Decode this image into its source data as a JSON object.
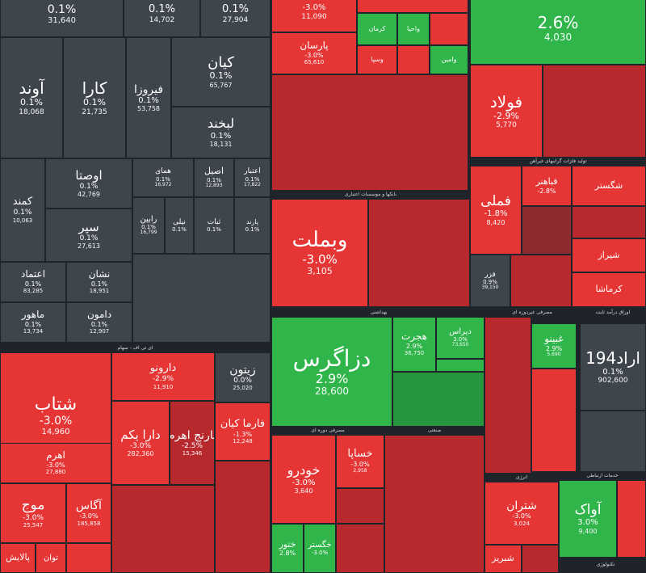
{
  "colors": {
    "neutral": "#3f454d",
    "negative": "#e63535",
    "negative_dark": "#b7292c",
    "positive": "#2fb54a",
    "background": "#1f242b"
  },
  "sections": [
    {
      "label": "ای تی اف - سهام"
    },
    {
      "label": "بهداشتی"
    },
    {
      "label": "مصرفی غیردوره ای"
    },
    {
      "label": "اوراق درآمد ثابت"
    },
    {
      "label": "مصرفی دوره ای"
    },
    {
      "label": "صنعتی"
    },
    {
      "label": "انرژی"
    },
    {
      "label": "خدمات ارتباطی"
    },
    {
      "label": "تکنولوژی"
    },
    {
      "label": "بانکها و موسسات اعتباری"
    },
    {
      "label": "تولید فلزات گرانبهای غیرآهن"
    }
  ],
  "tiles": [
    {
      "name": "",
      "pct": "0.1%",
      "val": "31,640"
    },
    {
      "name": "",
      "pct": "0.1%",
      "val": "14,702"
    },
    {
      "name": "",
      "pct": "0.1%",
      "val": "27,904"
    },
    {
      "name": "آوند",
      "pct": "0.1%",
      "val": "18,068"
    },
    {
      "name": "کارا",
      "pct": "0.1%",
      "val": "21,735"
    },
    {
      "name": "فیروزا",
      "pct": "0.1%",
      "val": "53,758"
    },
    {
      "name": "کیان",
      "pct": "0.1%",
      "val": "65,767"
    },
    {
      "name": "لبخند",
      "pct": "0.1%",
      "val": "18,131"
    },
    {
      "name": "کمند",
      "pct": "0.1%",
      "val": "10,063"
    },
    {
      "name": "اوصتا",
      "pct": "0.1%",
      "val": "42,769"
    },
    {
      "name": "سپر",
      "pct": "0.1%",
      "val": "27,613"
    },
    {
      "name": "همای",
      "pct": "0.1%",
      "val": "16,972"
    },
    {
      "name": "اصیل",
      "pct": "0.1%",
      "val": "12,893"
    },
    {
      "name": "اعتبار",
      "pct": "0.1%",
      "val": "17,822"
    },
    {
      "name": "رابین",
      "pct": "0.1%",
      "val": "16,799"
    },
    {
      "name": "نیلی",
      "pct": "0.1%",
      "val": ""
    },
    {
      "name": "ثبات",
      "pct": "0.1%",
      "val": ""
    },
    {
      "name": "پارند",
      "pct": "0.1%",
      "val": ""
    },
    {
      "name": "اعتماد",
      "pct": "0.1%",
      "val": "83,285"
    },
    {
      "name": "نشان",
      "pct": "0.1%",
      "val": "18,951"
    },
    {
      "name": "ماهور",
      "pct": "0.1%",
      "val": "13,734"
    },
    {
      "name": "دامون",
      "pct": "0.1%",
      "val": "12,907"
    },
    {
      "name": "",
      "pct": "-3.0%",
      "val": "11,090"
    },
    {
      "name": "پارسان",
      "pct": "-3.0%",
      "val": "65,610"
    },
    {
      "name": "کرمان",
      "pct": "",
      "val": ""
    },
    {
      "name": "واحیا",
      "pct": "",
      "val": ""
    },
    {
      "name": "وسپا",
      "pct": "",
      "val": ""
    },
    {
      "name": "وامین",
      "pct": "",
      "val": ""
    },
    {
      "name": "",
      "pct": "2.6%",
      "val": "4,030"
    },
    {
      "name": "فولاد",
      "pct": "-2.9%",
      "val": "5,770"
    },
    {
      "name": "فملی",
      "pct": "-1.8%",
      "val": "8,420"
    },
    {
      "name": "فباهنر",
      "pct": "-2.8%",
      "val": ""
    },
    {
      "name": "شگستر",
      "pct": "",
      "val": ""
    },
    {
      "name": "شیراز",
      "pct": "",
      "val": ""
    },
    {
      "name": "کرماشا",
      "pct": "",
      "val": ""
    },
    {
      "name": "فزر",
      "pct": "0.9%",
      "val": "39,150"
    },
    {
      "name": "وبملت",
      "pct": "-3.0%",
      "val": "3,105"
    },
    {
      "name": "شتاب",
      "pct": "-3.0%",
      "val": "14,960"
    },
    {
      "name": "دارونو",
      "pct": "-2.9%",
      "val": "11,910"
    },
    {
      "name": "دارا یکم",
      "pct": "-3.0%",
      "val": "282,360"
    },
    {
      "name": "نارنج اهرم",
      "pct": "-2.5%",
      "val": "15,346"
    },
    {
      "name": "اهرم",
      "pct": "-3.0%",
      "val": "27,880"
    },
    {
      "name": "موج",
      "pct": "-3.0%",
      "val": "25,547"
    },
    {
      "name": "آگاس",
      "pct": "-3.0%",
      "val": "185,858"
    },
    {
      "name": "زیتون",
      "pct": "0.0%",
      "val": "25,020"
    },
    {
      "name": "فارما کیان",
      "pct": "-1.3%",
      "val": "12,248"
    },
    {
      "name": "پالایش",
      "pct": "",
      "val": ""
    },
    {
      "name": "توان",
      "pct": "",
      "val": ""
    },
    {
      "name": "دزاگرس",
      "pct": "2.9%",
      "val": "28,600"
    },
    {
      "name": "هجرت",
      "pct": "2.9%",
      "val": "36,750"
    },
    {
      "name": "دیراس",
      "pct": "3.0%",
      "val": "73,650"
    },
    {
      "name": "غبینو",
      "pct": "2.9%",
      "val": "5,690"
    },
    {
      "name": "اراد194",
      "pct": "0.1%",
      "val": "902,600"
    },
    {
      "name": "خودرو",
      "pct": "-3.0%",
      "val": "3,640"
    },
    {
      "name": "خساپا",
      "pct": "-3.0%",
      "val": "2,958"
    },
    {
      "name": "شتران",
      "pct": "-3.0%",
      "val": "3,024"
    },
    {
      "name": "شبریز",
      "pct": "",
      "val": ""
    },
    {
      "name": "آواک",
      "pct": "3.0%",
      "val": "9,400"
    },
    {
      "name": "ختور",
      "pct": "2.8%",
      "val": ""
    },
    {
      "name": "خگستر",
      "pct": "-3.0%",
      "val": ""
    }
  ]
}
